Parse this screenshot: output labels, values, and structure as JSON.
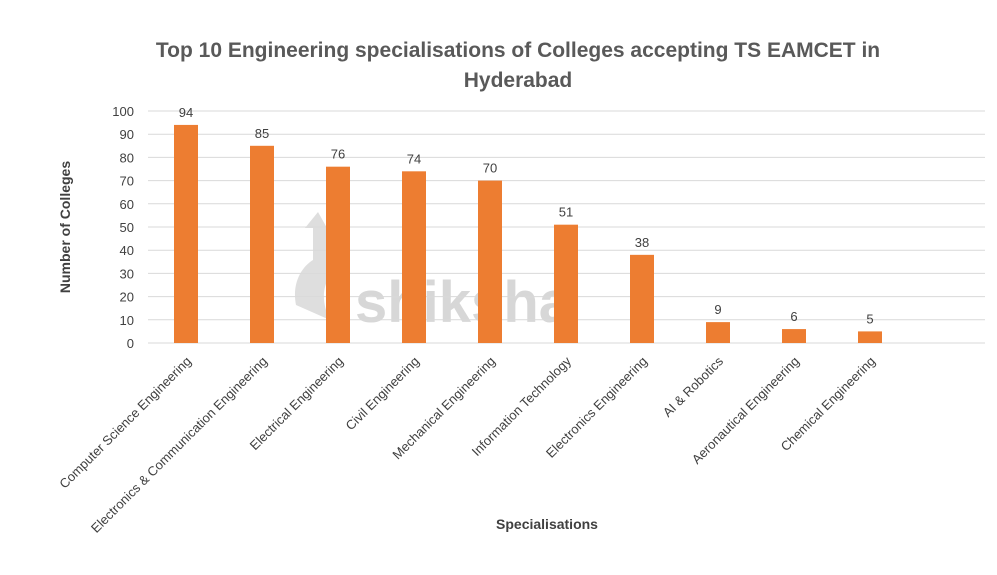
{
  "chart_data": {
    "type": "bar",
    "title_lines": [
      "Top 10 Engineering specialisations of Colleges accepting TS EAMCET in",
      "Hyderabad"
    ],
    "xlabel": "Specialisations",
    "ylabel": "Number of Colleges",
    "categories": [
      "Computer Science Engineering",
      "Electronics & Communication Engineering",
      "Electrical Engineering",
      "Civil Engineering",
      "Mechanical Engineering",
      "Information Technology",
      "Electronics Engineering",
      "AI & Robotics",
      "Aeronautical Engineering",
      "Chemical Engineering"
    ],
    "values": [
      94,
      85,
      76,
      74,
      70,
      51,
      38,
      9,
      6,
      5
    ],
    "ylim": [
      0,
      100
    ],
    "yticks": [
      0,
      10,
      20,
      30,
      40,
      50,
      60,
      70,
      80,
      90,
      100
    ],
    "grid": true,
    "legend": "none",
    "data_labels": true,
    "bar_color": "#ed7d31"
  },
  "watermark": "shiksha"
}
